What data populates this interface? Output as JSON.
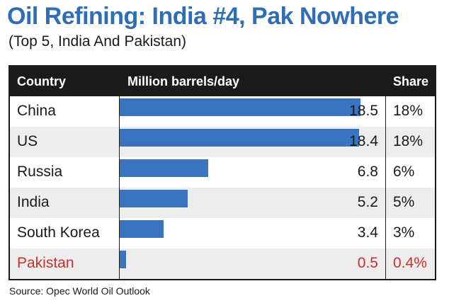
{
  "title": "Oil Refining: India #4, Pak Nowhere",
  "subtitle": "(Top 5, India And Pakistan)",
  "source": "Source: Opec World Oil Outlook",
  "colors": {
    "title": "#2f6db5",
    "bar": "#3a73bf",
    "highlight": "#c8312b",
    "header": "#1b1b1b",
    "alt_row": "#ededed"
  },
  "chart_data": {
    "type": "bar",
    "orientation": "horizontal",
    "columns": [
      "Country",
      "Million barrels/day",
      "Share"
    ],
    "categories": [
      "China",
      "US",
      "Russia",
      "India",
      "South Korea",
      "Pakistan"
    ],
    "values": [
      18.5,
      18.4,
      6.8,
      5.2,
      3.4,
      0.5
    ],
    "value_labels": [
      "18.5",
      "18.4",
      "6.8",
      "5.2",
      "3.4",
      "0.5"
    ],
    "shares": [
      "18%",
      "18%",
      "6%",
      "5%",
      "3%",
      "0.4%"
    ],
    "highlight": [
      "Pakistan"
    ],
    "xlim": [
      0,
      18.5
    ],
    "grid": false,
    "legend": "none"
  }
}
